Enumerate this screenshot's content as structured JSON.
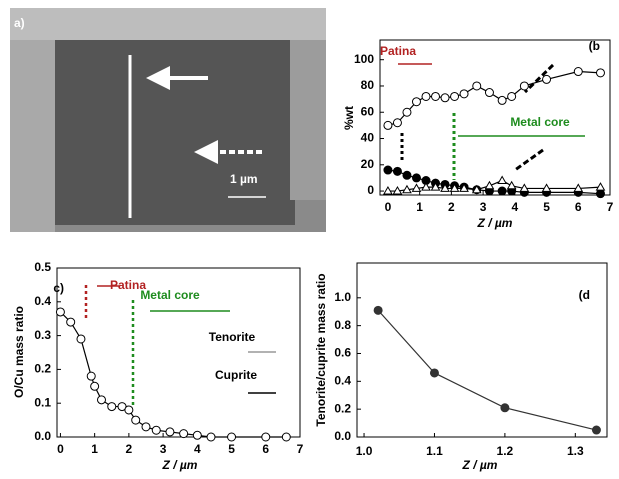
{
  "image": {
    "label": "a)",
    "scale": "1 µm"
  },
  "chart_data": [
    {
      "type": "line",
      "label": "(b",
      "xlabel": "Z / µm",
      "ylabel": "%wt",
      "xlim": [
        -0.25,
        7
      ],
      "xticks": [
        0,
        1,
        2,
        3,
        4,
        5,
        6,
        7
      ],
      "ylim": [
        -3,
        115
      ],
      "yticks": [
        0,
        20,
        40,
        60,
        80,
        100
      ],
      "annotations": [
        {
          "text": "Patina",
          "color": "#b22222"
        },
        {
          "text": "Metal core",
          "color": "#1e8c1e"
        }
      ],
      "series": [
        {
          "marker": "open-circle",
          "color": "#000000",
          "x": [
            0,
            0.3,
            0.6,
            0.9,
            1.2,
            1.5,
            1.8,
            2.1,
            2.4,
            2.8,
            3.2,
            3.6,
            3.9,
            4.3,
            5,
            6,
            6.7
          ],
          "values": [
            50,
            52,
            60,
            68,
            72,
            72,
            71,
            72,
            74,
            80,
            75,
            69,
            72,
            80,
            85,
            91,
            90
          ]
        },
        {
          "marker": "filled-circle",
          "color": "#000000",
          "x": [
            0,
            0.3,
            0.6,
            0.9,
            1.2,
            1.5,
            1.8,
            2.1,
            2.4,
            2.8,
            3.2,
            3.6,
            3.9,
            4.3,
            5,
            6,
            6.7
          ],
          "values": [
            16,
            15,
            12,
            10,
            8,
            6,
            5,
            4,
            3,
            1,
            0,
            0,
            0,
            -1,
            -1,
            -1,
            -2
          ]
        },
        {
          "marker": "open-triangle",
          "color": "#000000",
          "x": [
            0,
            0.3,
            0.6,
            0.9,
            1.2,
            1.5,
            1.8,
            2.1,
            2.4,
            2.8,
            3.2,
            3.6,
            3.9,
            4.3,
            5,
            6,
            6.7
          ],
          "values": [
            0,
            0,
            1,
            2,
            3,
            3,
            2,
            2,
            2,
            1,
            4,
            8,
            4,
            2,
            2,
            2,
            3
          ]
        }
      ]
    },
    {
      "type": "line",
      "label": "c)",
      "xlabel": "Z / µm",
      "ylabel": "O/Cu mass ratio",
      "xlim": [
        -0.1,
        7
      ],
      "xticks": [
        0,
        1,
        2,
        3,
        4,
        5,
        6,
        7
      ],
      "ylim": [
        0,
        0.5
      ],
      "yticks": [
        {
          "value": 0,
          "label": "0.0"
        },
        0.1,
        0.2,
        0.3,
        0.4,
        0.5
      ],
      "annotations": [
        {
          "text": "Patina",
          "color": "#b22222"
        },
        {
          "text": "Metal core",
          "color": "#1e8c1e"
        },
        {
          "text": "Tenorite",
          "color": "#000000"
        },
        {
          "text": "Cuprite",
          "color": "#000000"
        }
      ],
      "series": [
        {
          "marker": "open-circle",
          "color": "#000000",
          "x": [
            0,
            0.3,
            0.6,
            0.9,
            1.0,
            1.2,
            1.5,
            1.8,
            2.0,
            2.2,
            2.5,
            2.8,
            3.2,
            3.6,
            4,
            4.4,
            5,
            6,
            6.6
          ],
          "values": [
            0.37,
            0.34,
            0.29,
            0.18,
            0.15,
            0.11,
            0.09,
            0.09,
            0.08,
            0.05,
            0.03,
            0.02,
            0.015,
            0.01,
            0.005,
            0,
            0,
            0,
            0
          ]
        }
      ]
    },
    {
      "type": "line",
      "label": "(d",
      "xlabel": "Z / µm",
      "ylabel": "Tenorite/cuprite mass ratio",
      "xlim": [
        0.99,
        1.345
      ],
      "xticks": [
        {
          "value": 1,
          "label": "1.0"
        },
        1.1,
        1.2,
        1.3
      ],
      "ylim": [
        0,
        1.25
      ],
      "yticks": [
        {
          "value": 0,
          "label": "0.0"
        },
        0.2,
        0.4,
        0.6,
        0.8,
        {
          "value": 1,
          "label": "1.0"
        }
      ],
      "annotations": [],
      "series": [
        {
          "marker": "filled-circle",
          "color": "#333333",
          "x": [
            1.02,
            1.1,
            1.2,
            1.33
          ],
          "values": [
            0.91,
            0.46,
            0.21,
            0.05
          ]
        }
      ]
    }
  ]
}
